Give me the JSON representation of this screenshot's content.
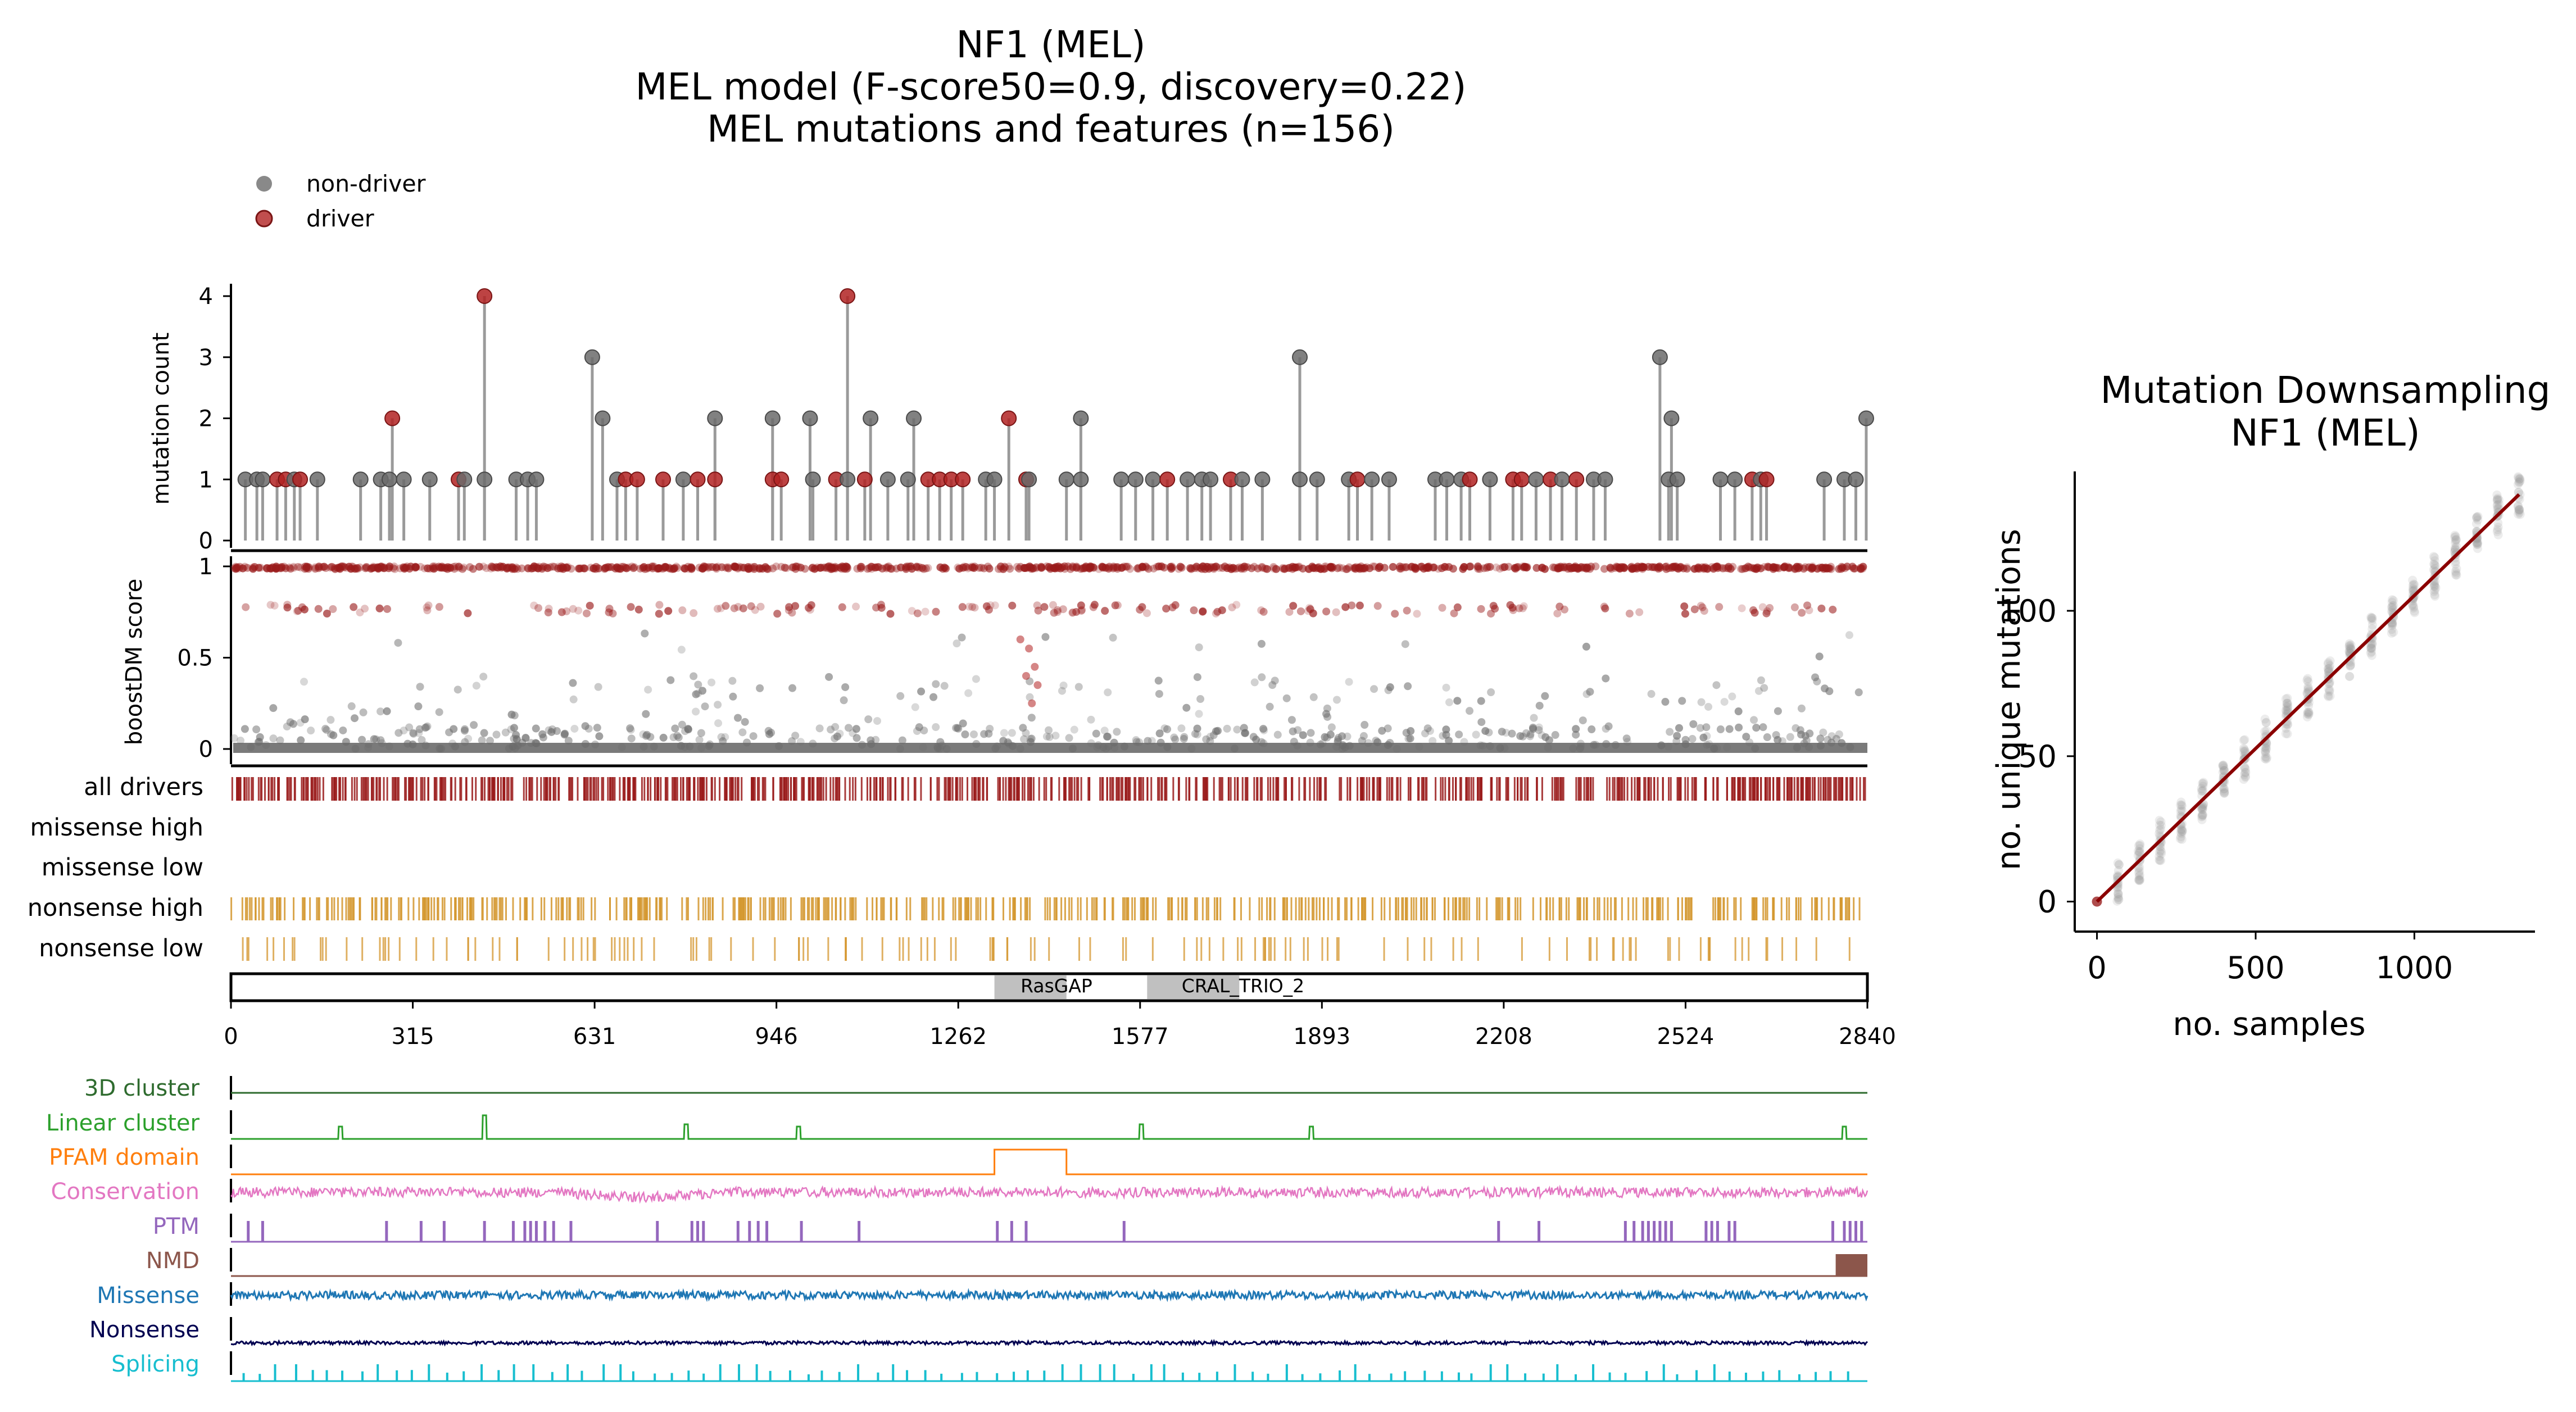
{
  "figure": {
    "title_lines": [
      "NF1 (MEL)",
      "MEL model (F-score50=0.9, discovery=0.22)",
      "MEL mutations and features (n=156)"
    ],
    "legend": [
      {
        "label": "non-driver",
        "color": "#6b6b6b"
      },
      {
        "label": "driver",
        "color": "#b22222"
      }
    ],
    "track_labels": [
      "all drivers",
      "missense high",
      "missense low",
      "nonsense high",
      "nonsense low"
    ],
    "feature_labels": [
      {
        "label": "3D cluster",
        "color": "#2e6b2e"
      },
      {
        "label": "Linear cluster",
        "color": "#2ca02c"
      },
      {
        "label": "PFAM domain",
        "color": "#ff7f0e"
      },
      {
        "label": "Conservation",
        "color": "#e377c2"
      },
      {
        "label": "PTM",
        "color": "#9467bd"
      },
      {
        "label": "NMD",
        "color": "#8c564b"
      },
      {
        "label": "Missense",
        "color": "#1f77b4"
      },
      {
        "label": "Nonsense",
        "color": "#000050"
      },
      {
        "label": "Splicing",
        "color": "#17becf"
      }
    ],
    "domains": [
      {
        "name": "RasGAP",
        "start": 1325,
        "end": 1450
      },
      {
        "name": "CRAL_TRIO_2",
        "start": 1590,
        "end": 1750
      }
    ],
    "colors": {
      "driver": "#b22222",
      "nondriver": "#6b6b6b",
      "drivers_track": "#9a1b1b",
      "nonsense_track": "#d4962e",
      "regression": "#8b0000",
      "domain_fill": "#c0c0c0"
    }
  },
  "chart_data": [
    {
      "type": "scatter",
      "panel": "lollipop",
      "ylabel": "mutation count",
      "xlim": [
        0,
        2840
      ],
      "ylim": [
        0,
        4
      ],
      "yticks": [
        "0",
        "1",
        "2",
        "3",
        "4"
      ],
      "points": [
        {
          "x": 25,
          "y": 1,
          "driver": false
        },
        {
          "x": 45,
          "y": 1,
          "driver": false
        },
        {
          "x": 55,
          "y": 1,
          "driver": false
        },
        {
          "x": 80,
          "y": 1,
          "driver": true
        },
        {
          "x": 95,
          "y": 1,
          "driver": true
        },
        {
          "x": 110,
          "y": 1,
          "driver": false
        },
        {
          "x": 120,
          "y": 1,
          "driver": true
        },
        {
          "x": 150,
          "y": 1,
          "driver": false
        },
        {
          "x": 225,
          "y": 1,
          "driver": false
        },
        {
          "x": 260,
          "y": 1,
          "driver": false
        },
        {
          "x": 275,
          "y": 1,
          "driver": false
        },
        {
          "x": 280,
          "y": 2,
          "driver": true
        },
        {
          "x": 300,
          "y": 1,
          "driver": false
        },
        {
          "x": 345,
          "y": 1,
          "driver": false
        },
        {
          "x": 395,
          "y": 1,
          "driver": true
        },
        {
          "x": 405,
          "y": 1,
          "driver": false
        },
        {
          "x": 440,
          "y": 4,
          "driver": true
        },
        {
          "x": 440,
          "y": 1,
          "driver": false
        },
        {
          "x": 495,
          "y": 1,
          "driver": false
        },
        {
          "x": 515,
          "y": 1,
          "driver": false
        },
        {
          "x": 530,
          "y": 1,
          "driver": false
        },
        {
          "x": 627,
          "y": 3,
          "driver": false
        },
        {
          "x": 645,
          "y": 2,
          "driver": false
        },
        {
          "x": 670,
          "y": 1,
          "driver": false
        },
        {
          "x": 685,
          "y": 1,
          "driver": true
        },
        {
          "x": 705,
          "y": 1,
          "driver": true
        },
        {
          "x": 750,
          "y": 1,
          "driver": true
        },
        {
          "x": 785,
          "y": 1,
          "driver": false
        },
        {
          "x": 810,
          "y": 1,
          "driver": true
        },
        {
          "x": 840,
          "y": 2,
          "driver": false
        },
        {
          "x": 840,
          "y": 1,
          "driver": true
        },
        {
          "x": 940,
          "y": 2,
          "driver": false
        },
        {
          "x": 940,
          "y": 1,
          "driver": true
        },
        {
          "x": 955,
          "y": 1,
          "driver": true
        },
        {
          "x": 1005,
          "y": 2,
          "driver": false
        },
        {
          "x": 1010,
          "y": 1,
          "driver": false
        },
        {
          "x": 1050,
          "y": 1,
          "driver": true
        },
        {
          "x": 1070,
          "y": 4,
          "driver": true
        },
        {
          "x": 1070,
          "y": 1,
          "driver": false
        },
        {
          "x": 1100,
          "y": 1,
          "driver": true
        },
        {
          "x": 1110,
          "y": 2,
          "driver": false
        },
        {
          "x": 1140,
          "y": 1,
          "driver": false
        },
        {
          "x": 1175,
          "y": 1,
          "driver": false
        },
        {
          "x": 1185,
          "y": 2,
          "driver": false
        },
        {
          "x": 1210,
          "y": 1,
          "driver": true
        },
        {
          "x": 1230,
          "y": 1,
          "driver": true
        },
        {
          "x": 1250,
          "y": 1,
          "driver": true
        },
        {
          "x": 1270,
          "y": 1,
          "driver": true
        },
        {
          "x": 1310,
          "y": 1,
          "driver": false
        },
        {
          "x": 1325,
          "y": 1,
          "driver": false
        },
        {
          "x": 1350,
          "y": 2,
          "driver": true
        },
        {
          "x": 1380,
          "y": 1,
          "driver": true
        },
        {
          "x": 1385,
          "y": 1,
          "driver": false
        },
        {
          "x": 1450,
          "y": 1,
          "driver": false
        },
        {
          "x": 1475,
          "y": 2,
          "driver": false
        },
        {
          "x": 1475,
          "y": 1,
          "driver": false
        },
        {
          "x": 1545,
          "y": 1,
          "driver": false
        },
        {
          "x": 1570,
          "y": 1,
          "driver": false
        },
        {
          "x": 1600,
          "y": 1,
          "driver": false
        },
        {
          "x": 1625,
          "y": 1,
          "driver": true
        },
        {
          "x": 1660,
          "y": 1,
          "driver": false
        },
        {
          "x": 1685,
          "y": 1,
          "driver": false
        },
        {
          "x": 1700,
          "y": 1,
          "driver": false
        },
        {
          "x": 1735,
          "y": 1,
          "driver": true
        },
        {
          "x": 1755,
          "y": 1,
          "driver": false
        },
        {
          "x": 1790,
          "y": 1,
          "driver": false
        },
        {
          "x": 1855,
          "y": 3,
          "driver": false
        },
        {
          "x": 1855,
          "y": 1,
          "driver": false
        },
        {
          "x": 1885,
          "y": 1,
          "driver": false
        },
        {
          "x": 1940,
          "y": 1,
          "driver": false
        },
        {
          "x": 1955,
          "y": 1,
          "driver": true
        },
        {
          "x": 1980,
          "y": 1,
          "driver": false
        },
        {
          "x": 2010,
          "y": 1,
          "driver": false
        },
        {
          "x": 2090,
          "y": 1,
          "driver": false
        },
        {
          "x": 2110,
          "y": 1,
          "driver": false
        },
        {
          "x": 2135,
          "y": 1,
          "driver": false
        },
        {
          "x": 2150,
          "y": 1,
          "driver": true
        },
        {
          "x": 2185,
          "y": 1,
          "driver": false
        },
        {
          "x": 2225,
          "y": 1,
          "driver": true
        },
        {
          "x": 2240,
          "y": 1,
          "driver": true
        },
        {
          "x": 2265,
          "y": 1,
          "driver": false
        },
        {
          "x": 2290,
          "y": 1,
          "driver": true
        },
        {
          "x": 2310,
          "y": 1,
          "driver": false
        },
        {
          "x": 2335,
          "y": 1,
          "driver": true
        },
        {
          "x": 2365,
          "y": 1,
          "driver": false
        },
        {
          "x": 2385,
          "y": 1,
          "driver": false
        },
        {
          "x": 2480,
          "y": 3,
          "driver": false
        },
        {
          "x": 2500,
          "y": 2,
          "driver": false
        },
        {
          "x": 2495,
          "y": 1,
          "driver": false
        },
        {
          "x": 2510,
          "y": 1,
          "driver": false
        },
        {
          "x": 2585,
          "y": 1,
          "driver": false
        },
        {
          "x": 2610,
          "y": 1,
          "driver": false
        },
        {
          "x": 2640,
          "y": 1,
          "driver": true
        },
        {
          "x": 2655,
          "y": 1,
          "driver": false
        },
        {
          "x": 2665,
          "y": 1,
          "driver": true
        },
        {
          "x": 2765,
          "y": 1,
          "driver": false
        },
        {
          "x": 2800,
          "y": 1,
          "driver": false
        },
        {
          "x": 2820,
          "y": 1,
          "driver": false
        },
        {
          "x": 2838,
          "y": 2,
          "driver": false
        }
      ]
    },
    {
      "type": "scatter",
      "panel": "boostdm",
      "ylabel": "boostDM score",
      "xlim": [
        0,
        2840
      ],
      "ylim": [
        0,
        1
      ],
      "yticks": [
        "0",
        "0.5",
        "1"
      ]
    },
    {
      "type": "table",
      "panel": "tracks",
      "rows": [
        "all drivers",
        "missense high",
        "missense low",
        "nonsense high",
        "nonsense low"
      ]
    },
    {
      "type": "line",
      "panel": "features",
      "xlim": [
        0,
        2840
      ],
      "xticks": [
        "0",
        "315",
        "631",
        "946",
        "1262",
        "1577",
        "1893",
        "2208",
        "2524",
        "2840"
      ],
      "linear_cluster_peaks": [
        190,
        440,
        790,
        985,
        1580,
        1875,
        2800
      ],
      "pfam_domain": [
        1325,
        1450
      ]
    },
    {
      "type": "scatter",
      "panel": "downsampling",
      "title_lines": [
        "Mutation Downsampling",
        "NF1 (MEL)"
      ],
      "xlabel": "no. samples",
      "ylabel": "no. unique mutations",
      "xticks": [
        "0",
        "500",
        "1000"
      ],
      "yticks": [
        "0",
        "50",
        "100"
      ],
      "xlim": [
        -70,
        1380
      ],
      "ylim": [
        -8,
        146
      ],
      "fit": {
        "x0": 0,
        "y0": 0,
        "x1": 1330,
        "y1": 140
      }
    }
  ]
}
